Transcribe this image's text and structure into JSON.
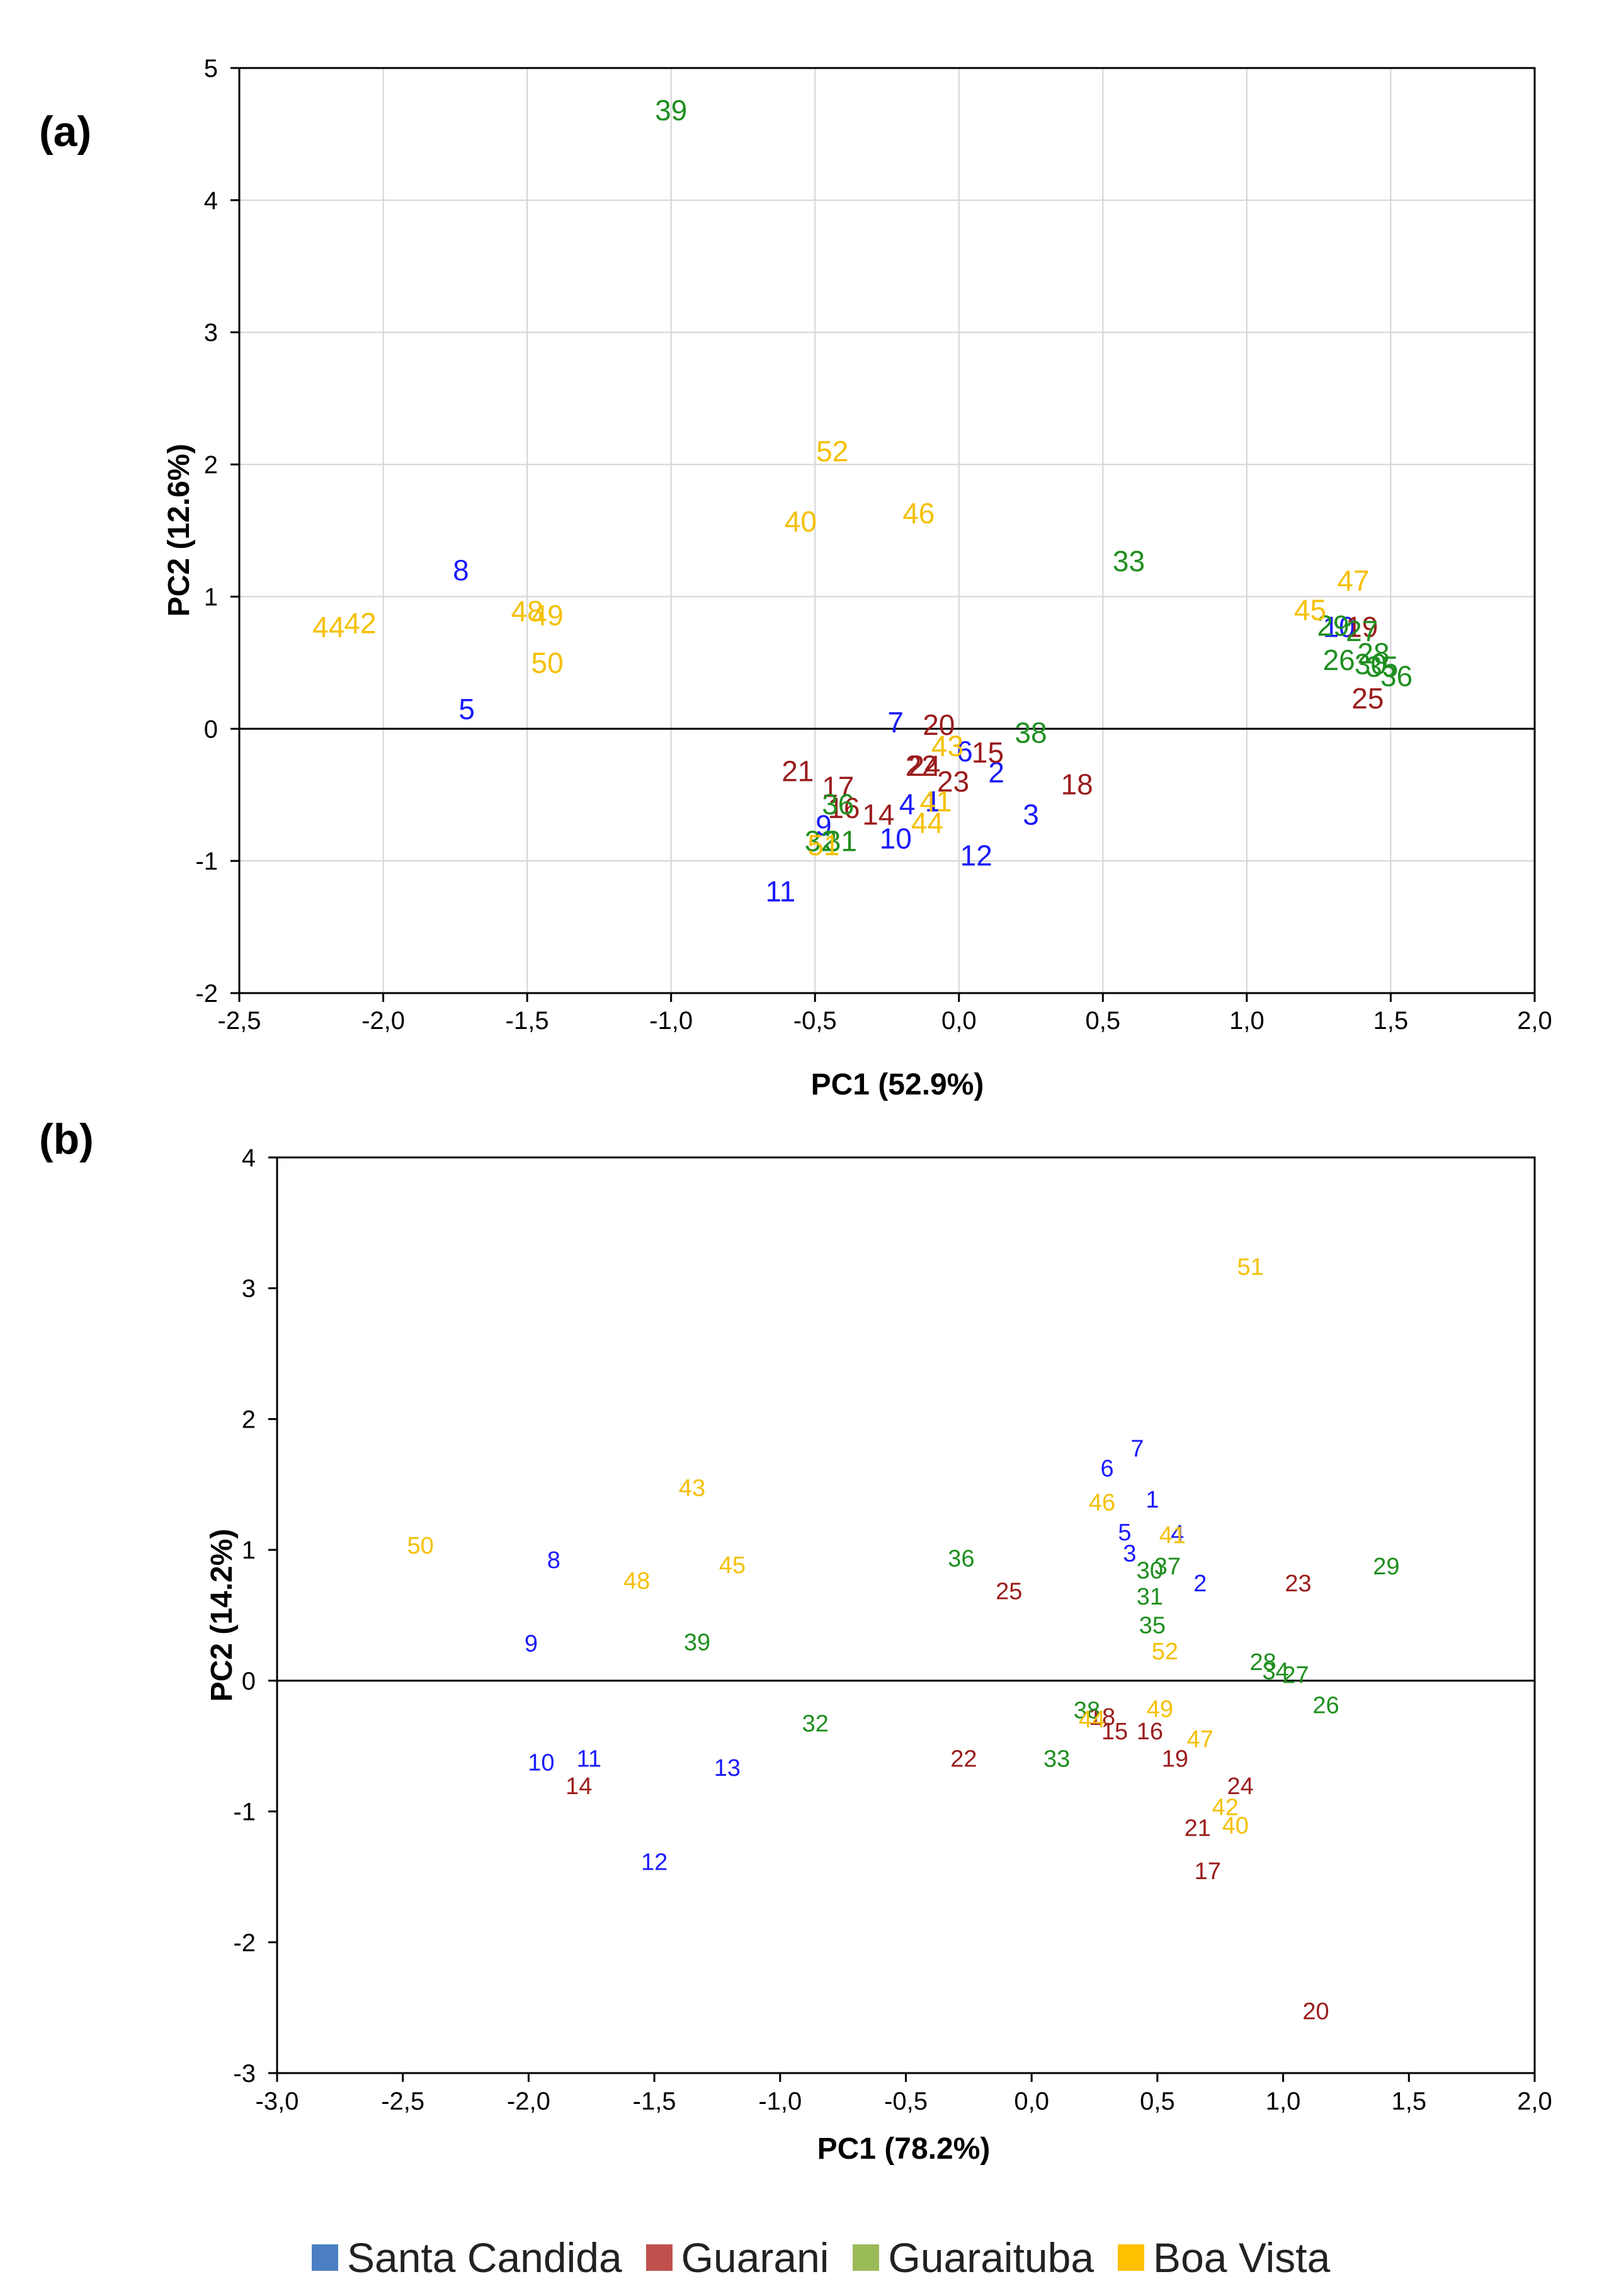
{
  "chart_data": [
    {
      "panel_label": "(a)",
      "type": "scatter",
      "xlabel": "PC1 (52.9%)",
      "ylabel": "PC2 (12.6%)",
      "xlim": [
        -2.5,
        2.0
      ],
      "ylim": [
        -2,
        5
      ],
      "xticks": [
        -2.5,
        -2.0,
        -1.5,
        -1.0,
        -0.5,
        0.0,
        0.5,
        1.0,
        1.5,
        2.0
      ],
      "yticks": [
        -2,
        -1,
        0,
        1,
        2,
        3,
        4,
        5
      ],
      "xtick_labels": [
        "-2,5",
        "-2,0",
        "-1,5",
        "-1,0",
        "-0,5",
        "0,0",
        "0,5",
        "1,0",
        "1,5",
        "2,0"
      ],
      "ytick_labels": [
        "-2",
        "-1",
        "0",
        "1",
        "2",
        "3",
        "4",
        "5"
      ],
      "zero_line": true,
      "grid": true,
      "point_label_size": "large",
      "series": [
        {
          "name": "Santa Candida",
          "color": "#1a1aff",
          "points": [
            {
              "label": "8",
              "x": -1.73,
              "y": 1.2
            },
            {
              "label": "5",
              "x": -1.71,
              "y": 0.15
            },
            {
              "label": "7",
              "x": -0.22,
              "y": 0.05
            },
            {
              "label": "6",
              "x": 0.02,
              "y": -0.17
            },
            {
              "label": "2",
              "x": 0.13,
              "y": -0.33
            },
            {
              "label": "3",
              "x": 0.25,
              "y": -0.65
            },
            {
              "label": "4",
              "x": -0.18,
              "y": -0.57
            },
            {
              "label": "1",
              "x": -0.09,
              "y": -0.55
            },
            {
              "label": "9",
              "x": -0.47,
              "y": -0.73
            },
            {
              "label": "10",
              "x": -0.22,
              "y": -0.83
            },
            {
              "label": "12",
              "x": 0.06,
              "y": -0.96
            },
            {
              "label": "11",
              "x": -0.62,
              "y": -1.23
            },
            {
              "label": "10",
              "x": 1.32,
              "y": 0.77
            }
          ]
        },
        {
          "name": "Guarani",
          "color": "#9b1c1c",
          "points": [
            {
              "label": "20",
              "x": -0.07,
              "y": 0.03
            },
            {
              "label": "15",
              "x": 0.1,
              "y": -0.18
            },
            {
              "label": "21",
              "x": -0.56,
              "y": -0.32
            },
            {
              "label": "22",
              "x": -0.13,
              "y": -0.28
            },
            {
              "label": "24",
              "x": -0.12,
              "y": -0.28
            },
            {
              "label": "23",
              "x": -0.02,
              "y": -0.4
            },
            {
              "label": "18",
              "x": 0.41,
              "y": -0.42
            },
            {
              "label": "17",
              "x": -0.42,
              "y": -0.44
            },
            {
              "label": "16",
              "x": -0.4,
              "y": -0.6
            },
            {
              "label": "14",
              "x": -0.28,
              "y": -0.65
            },
            {
              "label": "19",
              "x": 1.4,
              "y": 0.77
            },
            {
              "label": "25",
              "x": 1.42,
              "y": 0.23
            }
          ]
        },
        {
          "name": "Guaraituba",
          "color": "#1f8f1f",
          "points": [
            {
              "label": "39",
              "x": -1.0,
              "y": 4.68
            },
            {
              "label": "33",
              "x": 0.59,
              "y": 1.27
            },
            {
              "label": "38",
              "x": 0.25,
              "y": -0.03
            },
            {
              "label": "36",
              "x": -0.42,
              "y": -0.57
            },
            {
              "label": "31",
              "x": -0.41,
              "y": -0.85
            },
            {
              "label": "32",
              "x": -0.48,
              "y": -0.85
            },
            {
              "label": "29",
              "x": 1.3,
              "y": 0.78
            },
            {
              "label": "27",
              "x": 1.4,
              "y": 0.74
            },
            {
              "label": "26",
              "x": 1.32,
              "y": 0.52
            },
            {
              "label": "28",
              "x": 1.44,
              "y": 0.57
            },
            {
              "label": "30",
              "x": 1.43,
              "y": 0.49
            },
            {
              "label": "35",
              "x": 1.47,
              "y": 0.47
            },
            {
              "label": "36",
              "x": 1.52,
              "y": 0.4
            }
          ]
        },
        {
          "name": "Boa Vista",
          "color": "#f5c000",
          "points": [
            {
              "label": "44",
              "x": -2.19,
              "y": 0.77
            },
            {
              "label": "42",
              "x": -2.08,
              "y": 0.8
            },
            {
              "label": "48",
              "x": -1.5,
              "y": 0.89
            },
            {
              "label": "49",
              "x": -1.43,
              "y": 0.86
            },
            {
              "label": "50",
              "x": -1.43,
              "y": 0.5
            },
            {
              "label": "52",
              "x": -0.44,
              "y": 2.1
            },
            {
              "label": "40",
              "x": -0.55,
              "y": 1.57
            },
            {
              "label": "46",
              "x": -0.14,
              "y": 1.63
            },
            {
              "label": "47",
              "x": 1.37,
              "y": 1.12
            },
            {
              "label": "45",
              "x": 1.22,
              "y": 0.9
            },
            {
              "label": "43",
              "x": -0.04,
              "y": -0.13
            },
            {
              "label": "41",
              "x": -0.08,
              "y": -0.55
            },
            {
              "label": "44",
              "x": -0.11,
              "y": -0.71
            },
            {
              "label": "51",
              "x": -0.47,
              "y": -0.88
            }
          ]
        }
      ]
    },
    {
      "panel_label": "(b)",
      "type": "scatter",
      "xlabel": "PC1 (78.2%)",
      "ylabel": "PC2 (14.2%)",
      "xlim": [
        -3.0,
        2.0
      ],
      "ylim": [
        -3,
        4
      ],
      "xticks": [
        -3.0,
        -2.5,
        -2.0,
        -1.5,
        -1.0,
        -0.5,
        0.0,
        0.5,
        1.0,
        1.5,
        2.0
      ],
      "yticks": [
        -3,
        -2,
        -1,
        0,
        1,
        2,
        3,
        4
      ],
      "xtick_labels": [
        "-3,0",
        "-2,5",
        "-2,0",
        "-1,5",
        "-1,0",
        "-0,5",
        "0,0",
        "0,5",
        "1,0",
        "1,5",
        "2,0"
      ],
      "ytick_labels": [
        "-3",
        "-2",
        "-1",
        "0",
        "1",
        "2",
        "3",
        "4"
      ],
      "zero_line": true,
      "grid": false,
      "point_label_size": "small",
      "series": [
        {
          "name": "Santa Candida",
          "color": "#1a1aff",
          "points": [
            {
              "label": "8",
              "x": -1.9,
              "y": 0.92
            },
            {
              "label": "9",
              "x": -1.99,
              "y": 0.28
            },
            {
              "label": "10",
              "x": -1.95,
              "y": -0.63
            },
            {
              "label": "11",
              "x": -1.76,
              "y": -0.6
            },
            {
              "label": "13",
              "x": -1.21,
              "y": -0.67
            },
            {
              "label": "12",
              "x": -1.5,
              "y": -1.39
            },
            {
              "label": "7",
              "x": 0.42,
              "y": 1.77
            },
            {
              "label": "6",
              "x": 0.3,
              "y": 1.62
            },
            {
              "label": "1",
              "x": 0.48,
              "y": 1.38
            },
            {
              "label": "5",
              "x": 0.37,
              "y": 1.13
            },
            {
              "label": "3",
              "x": 0.39,
              "y": 0.97
            },
            {
              "label": "4",
              "x": 0.58,
              "y": 1.12
            },
            {
              "label": "2",
              "x": 0.67,
              "y": 0.74
            }
          ]
        },
        {
          "name": "Guarani",
          "color": "#9b1c1c",
          "points": [
            {
              "label": "14",
              "x": -1.8,
              "y": -0.81
            },
            {
              "label": "25",
              "x": -0.09,
              "y": 0.68
            },
            {
              "label": "22",
              "x": -0.27,
              "y": -0.6
            },
            {
              "label": "23",
              "x": 1.06,
              "y": 0.74
            },
            {
              "label": "18",
              "x": 0.28,
              "y": -0.28
            },
            {
              "label": "15",
              "x": 0.33,
              "y": -0.39
            },
            {
              "label": "16",
              "x": 0.47,
              "y": -0.39
            },
            {
              "label": "19",
              "x": 0.57,
              "y": -0.6
            },
            {
              "label": "24",
              "x": 0.83,
              "y": -0.81
            },
            {
              "label": "21",
              "x": 0.66,
              "y": -1.13
            },
            {
              "label": "17",
              "x": 0.7,
              "y": -1.46
            },
            {
              "label": "20",
              "x": 1.13,
              "y": -2.53
            }
          ]
        },
        {
          "name": "Guaraituba",
          "color": "#1f8f1f",
          "points": [
            {
              "label": "39",
              "x": -1.33,
              "y": 0.29
            },
            {
              "label": "36",
              "x": -0.28,
              "y": 0.93
            },
            {
              "label": "32",
              "x": -0.86,
              "y": -0.33
            },
            {
              "label": "33",
              "x": 0.1,
              "y": -0.6
            },
            {
              "label": "38",
              "x": 0.22,
              "y": -0.23
            },
            {
              "label": "30",
              "x": 0.47,
              "y": 0.84
            },
            {
              "label": "37",
              "x": 0.54,
              "y": 0.87
            },
            {
              "label": "31",
              "x": 0.47,
              "y": 0.64
            },
            {
              "label": "35",
              "x": 0.48,
              "y": 0.42
            },
            {
              "label": "28",
              "x": 0.92,
              "y": 0.14
            },
            {
              "label": "34",
              "x": 0.97,
              "y": 0.07
            },
            {
              "label": "27",
              "x": 1.05,
              "y": 0.04
            },
            {
              "label": "26",
              "x": 1.17,
              "y": -0.19
            },
            {
              "label": "29",
              "x": 1.41,
              "y": 0.87
            }
          ]
        },
        {
          "name": "Boa Vista",
          "color": "#f5c000",
          "points": [
            {
              "label": "50",
              "x": -2.43,
              "y": 1.03
            },
            {
              "label": "43",
              "x": -1.35,
              "y": 1.47
            },
            {
              "label": "48",
              "x": -1.57,
              "y": 0.76
            },
            {
              "label": "45",
              "x": -1.19,
              "y": 0.88
            },
            {
              "label": "51",
              "x": 0.87,
              "y": 3.16
            },
            {
              "label": "46",
              "x": 0.28,
              "y": 1.36
            },
            {
              "label": "41",
              "x": 0.56,
              "y": 1.11
            },
            {
              "label": "52",
              "x": 0.53,
              "y": 0.22
            },
            {
              "label": "49",
              "x": 0.51,
              "y": -0.22
            },
            {
              "label": "44",
              "x": 0.24,
              "y": -0.3
            },
            {
              "label": "47",
              "x": 0.67,
              "y": -0.45
            },
            {
              "label": "42",
              "x": 0.77,
              "y": -0.97
            },
            {
              "label": "40",
              "x": 0.81,
              "y": -1.11
            }
          ]
        }
      ]
    }
  ],
  "legend": {
    "items": [
      {
        "label": "Santa Candida",
        "color": "#4a7fc4"
      },
      {
        "label": "Guarani",
        "color": "#c0504d"
      },
      {
        "label": "Guaraituba",
        "color": "#9bbb59"
      },
      {
        "label": "Boa Vista",
        "color": "#ffc000"
      }
    ]
  }
}
